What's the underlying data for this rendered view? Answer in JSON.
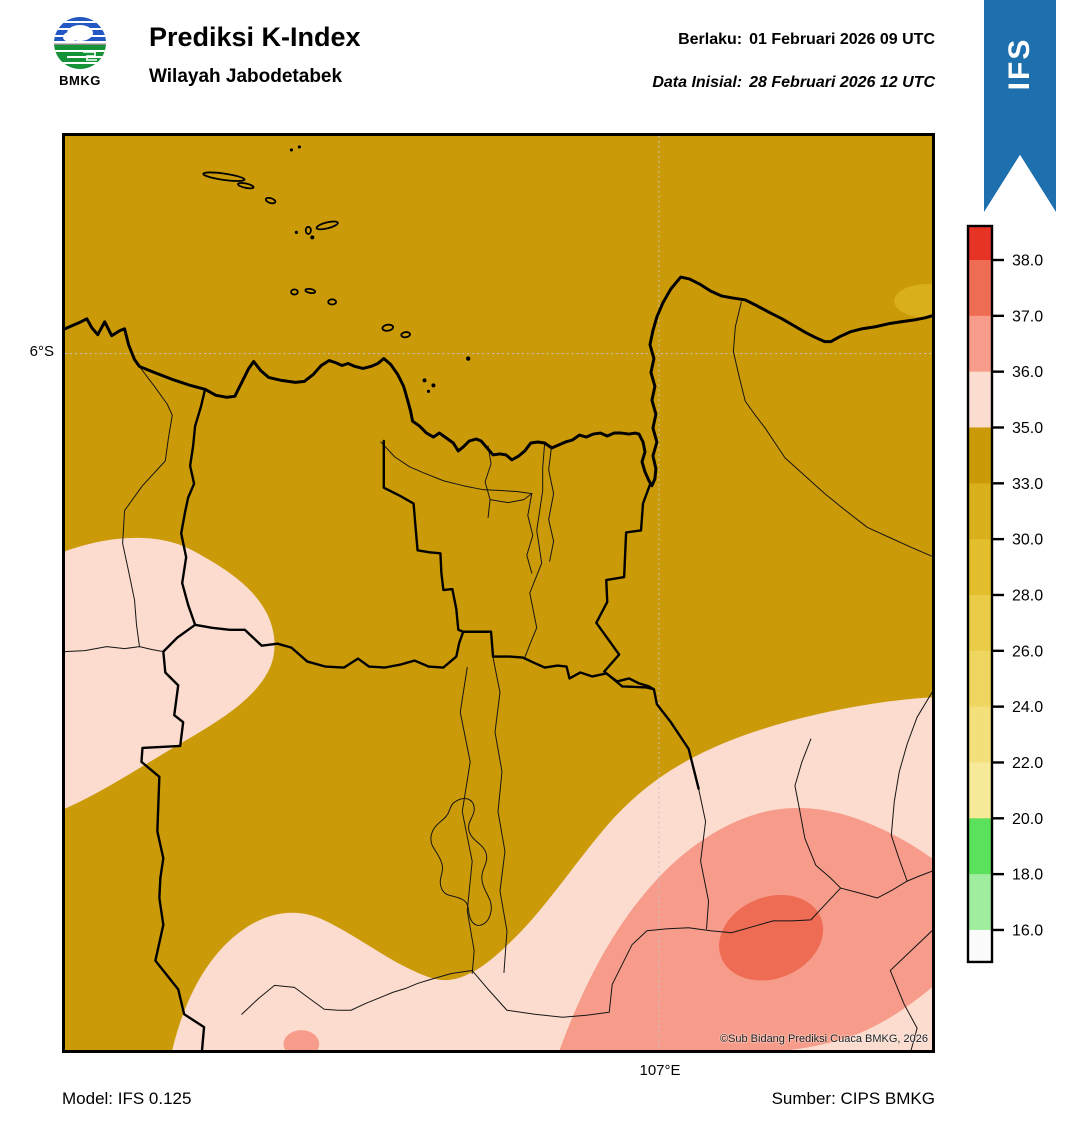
{
  "header": {
    "logo_text": "BMKG",
    "title": "Prediksi K-Index",
    "subtitle": "Wilayah Jabodetabek",
    "valid_label": "Berlaku:",
    "valid_value": "01 Februari 2026 09 UTC",
    "init_label": "Data Inisial:",
    "init_value": "28 Februari 2026 12 UTC",
    "model_badge": "IFS"
  },
  "map": {
    "lat_label": "6°S",
    "lon_label": "107°E",
    "copyright": "©Sub Bidang Prediksi Cuaca BMKG, 2026"
  },
  "footer": {
    "model": "Model: IFS 0.125",
    "source": "Sumber: CIPS BMKG"
  },
  "legend": {
    "tick_labels": [
      "38.0",
      "37.0",
      "36.0",
      "35.0",
      "33.0",
      "30.0",
      "28.0",
      "26.0",
      "24.0",
      "22.0",
      "20.0",
      "18.0",
      "16.0"
    ],
    "segment_colors_top_to_bottom": [
      "#E63323",
      "#EE6B54",
      "#F79C8A",
      "#FBDCCE",
      "#CB9A08",
      "#D9AF1B",
      "#E3BE2D",
      "#EBCC49",
      "#EFD660",
      "#F3E07B",
      "#F7EA9B",
      "#5CE15C",
      "#A0EDA0",
      "#FBFBFB"
    ]
  },
  "colors": {
    "map_background_33_35": "#CB9A08",
    "gold_30_33": "#D9AF1B",
    "pink_35_36": "#FBDCCE",
    "salmon_36_37": "#F79C8A",
    "red_37_38": "#EE6B54",
    "ribbon_blue": "#1E6FAD",
    "grid_gray": "#C4C4C4"
  }
}
